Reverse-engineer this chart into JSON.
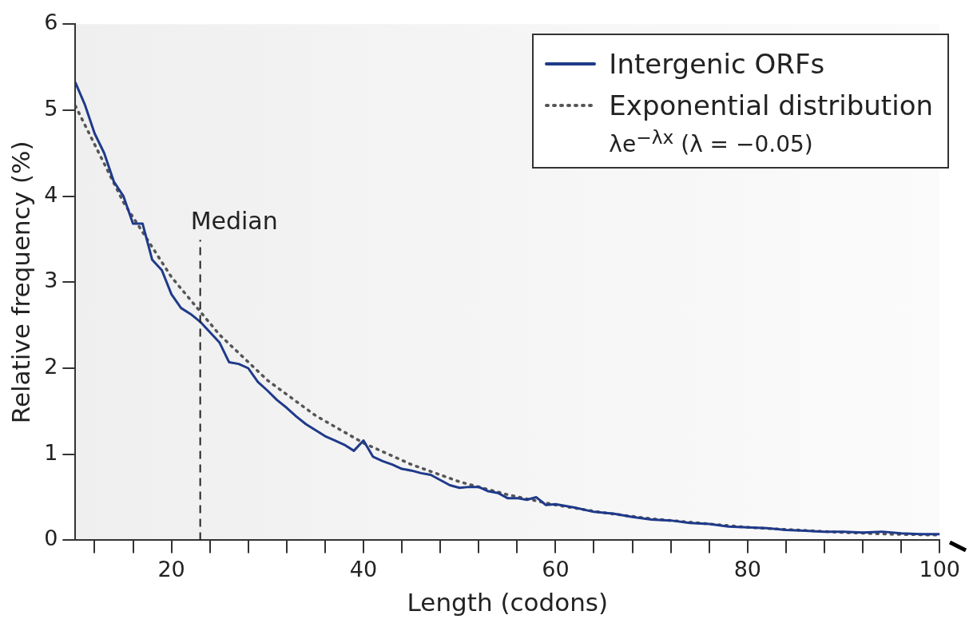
{
  "chart_data": {
    "type": "line",
    "xlabel": "Length (codons)",
    "ylabel": "Relative frequency (%)",
    "xlim": [
      10,
      100
    ],
    "ylim": [
      0,
      6
    ],
    "xticks": [
      {
        "value": 12,
        "label": null
      },
      {
        "value": 16,
        "label": null
      },
      20,
      {
        "value": 24,
        "label": null
      },
      {
        "value": 28,
        "label": null
      },
      {
        "value": 32,
        "label": null
      },
      {
        "value": 36,
        "label": null
      },
      40,
      {
        "value": 44,
        "label": null
      },
      {
        "value": 48,
        "label": null
      },
      {
        "value": 52,
        "label": null
      },
      {
        "value": 56,
        "label": null
      },
      60,
      {
        "value": 64,
        "label": null
      },
      {
        "value": 68,
        "label": null
      },
      {
        "value": 72,
        "label": null
      },
      {
        "value": 76,
        "label": null
      },
      80,
      {
        "value": 84,
        "label": null
      },
      {
        "value": 88,
        "label": null
      },
      {
        "value": 92,
        "label": null
      },
      {
        "value": 96,
        "label": null
      },
      100
    ],
    "yticks": [
      0,
      1,
      2,
      3,
      4,
      5,
      6
    ],
    "grid": false,
    "legend": "top right",
    "marker": "none",
    "annotations": [
      "λe$^{−λx}$ (λ = −0.05)"
    ],
    "ref_lines": [
      {
        "axis": "x",
        "value": 23,
        "label": "Median",
        "line_style": "dashed",
        "color": "#222222"
      }
    ],
    "series": [
      {
        "name": "Intergenic ORFs",
        "color": "#1f3a8a",
        "line_style": "solid",
        "x": [
          10,
          11,
          12,
          13,
          14,
          15,
          16,
          17,
          18,
          19,
          20,
          21,
          22,
          23,
          24,
          25,
          26,
          27,
          28,
          29,
          30,
          31,
          32,
          33,
          34,
          35,
          36,
          37,
          38,
          39,
          40,
          41,
          42,
          43,
          44,
          45,
          46,
          47,
          48,
          49,
          50,
          51,
          52,
          53,
          54,
          55,
          56,
          57,
          58,
          59,
          60,
          62,
          64,
          66,
          68,
          70,
          72,
          74,
          76,
          78,
          80,
          82,
          84,
          86,
          88,
          90,
          92,
          94,
          96,
          98,
          100
        ],
        "values": [
          5.32,
          5.06,
          4.73,
          4.5,
          4.17,
          4.0,
          3.68,
          3.68,
          3.26,
          3.14,
          2.86,
          2.7,
          2.63,
          2.54,
          2.42,
          2.3,
          2.07,
          2.05,
          2.0,
          1.84,
          1.74,
          1.63,
          1.54,
          1.44,
          1.35,
          1.28,
          1.21,
          1.16,
          1.11,
          1.04,
          1.16,
          0.97,
          0.92,
          0.88,
          0.83,
          0.81,
          0.78,
          0.76,
          0.7,
          0.64,
          0.61,
          0.62,
          0.62,
          0.57,
          0.55,
          0.49,
          0.49,
          0.47,
          0.5,
          0.41,
          0.42,
          0.38,
          0.33,
          0.31,
          0.27,
          0.24,
          0.23,
          0.2,
          0.19,
          0.16,
          0.15,
          0.14,
          0.12,
          0.11,
          0.1,
          0.1,
          0.09,
          0.1,
          0.08,
          0.07,
          0.07
        ]
      },
      {
        "name": "Exponential distribution",
        "color": "#555555",
        "line_style": "dotted",
        "x": [
          10,
          15,
          20,
          25,
          30,
          35,
          40,
          45,
          50,
          55,
          60,
          65,
          70,
          75,
          80,
          85,
          90,
          95,
          100
        ],
        "values": [
          5.05,
          3.93,
          3.06,
          2.39,
          1.86,
          1.45,
          1.13,
          0.88,
          0.68,
          0.53,
          0.41,
          0.32,
          0.25,
          0.2,
          0.15,
          0.12,
          0.09,
          0.07,
          0.06
        ]
      }
    ]
  }
}
